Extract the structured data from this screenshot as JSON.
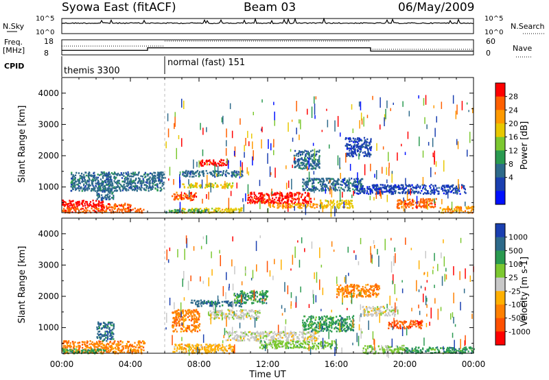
{
  "header": {
    "station": "Syowa East (fitACF)",
    "beam": "Beam 03",
    "date": "06/May/2009"
  },
  "panel_labels": {
    "nsky": "N.Sky",
    "nsearch": "N.Search",
    "freq_line1": "Freq.",
    "freq_line2": "[MHz]",
    "nave": "Nave",
    "cpid": "CPID"
  },
  "chart_data": [
    {
      "type": "line",
      "name": "noise-panel",
      "left_axis": {
        "ticks": [
          "10^5",
          "10^0"
        ]
      },
      "right_axis": {
        "ticks": [
          "10^5",
          "10^0"
        ]
      }
    },
    {
      "type": "line",
      "name": "frequency-panel",
      "left_axis": {
        "range": [
          8,
          18
        ],
        "ticks": [
          "18",
          "8"
        ]
      },
      "right_axis": {
        "range": [
          0,
          60
        ],
        "ticks": [
          "60",
          "0"
        ]
      },
      "frequency_steps": [
        {
          "from_hour": 0.0,
          "to_hour": 5.0,
          "value": 11.0
        },
        {
          "from_hour": 5.0,
          "to_hour": 18.0,
          "value": 12.7
        },
        {
          "from_hour": 18.0,
          "to_hour": 24.0,
          "value": 10.5
        }
      ],
      "nave_level": [
        {
          "from_hour": 0.0,
          "to_hour": 6.0,
          "value": 35
        },
        {
          "from_hour": 6.0,
          "to_hour": 18.0,
          "value": 55
        },
        {
          "from_hour": 18.0,
          "to_hour": 24.0,
          "value": 22
        }
      ]
    },
    {
      "type": "table",
      "name": "cpid-panel",
      "modes": [
        {
          "label": "themis 3300",
          "start_hour": 0.0
        },
        {
          "label": "normal (fast) 151",
          "start_hour": 6.0
        }
      ]
    },
    {
      "type": "heatmap",
      "name": "power-panel",
      "x_range_hours": [
        0,
        24
      ],
      "y_range_km": [
        180,
        4500
      ],
      "ylabel": "Slant Range [km]",
      "yticks": [
        1000,
        2000,
        3000,
        4000
      ],
      "colorbar": {
        "label": "Power [dB]",
        "ticks": [
          "28",
          "24",
          "20",
          "16",
          "12",
          "8",
          "4"
        ],
        "colors": [
          "#ff0000",
          "#ff6000",
          "#ff9a00",
          "#e8c800",
          "#7cc830",
          "#2a9a50",
          "#2d6a8a",
          "#1a3fb0",
          "#0010ff"
        ]
      },
      "blobs": [
        {
          "x0": 0.0,
          "x1": 2.5,
          "y0": 350,
          "y1": 600,
          "c": 0
        },
        {
          "x0": 0.0,
          "x1": 4.8,
          "y0": 200,
          "y1": 350,
          "c": 1
        },
        {
          "x0": 2.5,
          "x1": 4.0,
          "y0": 350,
          "y1": 500,
          "c": 1
        },
        {
          "x0": 2.0,
          "x1": 3.0,
          "y0": 600,
          "y1": 1200,
          "c": 6
        },
        {
          "x0": 6.4,
          "x1": 7.8,
          "y0": 600,
          "y1": 850,
          "c": 1
        },
        {
          "x0": 6.5,
          "x1": 10.5,
          "y0": 200,
          "y1": 350,
          "c": 3
        },
        {
          "x0": 7.0,
          "x1": 10.0,
          "y0": 1000,
          "y1": 1150,
          "c": 3
        },
        {
          "x0": 8.0,
          "x1": 9.7,
          "y0": 1700,
          "y1": 1900,
          "c": 0
        },
        {
          "x0": 7.0,
          "x1": 10.5,
          "y0": 1350,
          "y1": 1550,
          "c": 6
        },
        {
          "x0": 10.8,
          "x1": 14.5,
          "y0": 500,
          "y1": 850,
          "c": 0
        },
        {
          "x0": 12.0,
          "x1": 15.0,
          "y0": 350,
          "y1": 500,
          "c": 2
        },
        {
          "x0": 15.0,
          "x1": 17.0,
          "y0": 350,
          "y1": 600,
          "c": 3
        },
        {
          "x0": 19.5,
          "x1": 21.8,
          "y0": 350,
          "y1": 650,
          "c": 1
        },
        {
          "x0": 14.0,
          "x1": 17.5,
          "y0": 900,
          "y1": 1300,
          "c": 6
        },
        {
          "x0": 17.0,
          "x1": 23.5,
          "y0": 800,
          "y1": 1100,
          "c": 7
        },
        {
          "x0": 13.5,
          "x1": 15.0,
          "y0": 1600,
          "y1": 2200,
          "c": 6
        },
        {
          "x0": 16.5,
          "x1": 18.0,
          "y0": 2000,
          "y1": 2600,
          "c": 7
        },
        {
          "x0": 0.5,
          "x1": 6.0,
          "y0": 900,
          "y1": 1500,
          "c": 6
        },
        {
          "x0": 6.0,
          "x1": 8.5,
          "y0": 200,
          "y1": 300,
          "c": 5
        },
        {
          "x0": 22.0,
          "x1": 24.0,
          "y0": 200,
          "y1": 400,
          "c": 2
        }
      ]
    },
    {
      "type": "heatmap",
      "name": "velocity-panel",
      "x_range_hours": [
        0,
        24
      ],
      "y_range_km": [
        180,
        4500
      ],
      "ylabel": "Slant Range [km]",
      "yticks": [
        1000,
        2000,
        3000,
        4000
      ],
      "xlabel": "Time UT",
      "xticks": [
        "00:00",
        "04:00",
        "08:00",
        "12:00",
        "16:00",
        "20:00",
        "00:00"
      ],
      "colorbar": {
        "label": "Velocity [m s-1]",
        "ticks": [
          "1000",
          "500",
          "100",
          "25",
          "-25",
          "-100",
          "-500",
          "-1000"
        ],
        "colors": [
          "#1a3fb0",
          "#2d6a8a",
          "#2a9a50",
          "#7cc830",
          "#c8c8c8",
          "#ffb000",
          "#ff8000",
          "#ff5000",
          "#ff0000"
        ]
      },
      "blobs": [
        {
          "x0": 0.0,
          "x1": 4.8,
          "y0": 200,
          "y1": 600,
          "c": 6
        },
        {
          "x0": 0.0,
          "x1": 2.5,
          "y0": 200,
          "y1": 350,
          "c": 2
        },
        {
          "x0": 2.0,
          "x1": 3.0,
          "y0": 600,
          "y1": 1200,
          "c": 1
        },
        {
          "x0": 6.4,
          "x1": 8.0,
          "y0": 900,
          "y1": 1600,
          "c": 6
        },
        {
          "x0": 6.4,
          "x1": 10.0,
          "y0": 200,
          "y1": 500,
          "c": 5
        },
        {
          "x0": 7.5,
          "x1": 10.5,
          "y0": 1700,
          "y1": 1900,
          "c": 1
        },
        {
          "x0": 8.5,
          "x1": 11.5,
          "y0": 1300,
          "y1": 1600,
          "c": 4
        },
        {
          "x0": 9.5,
          "x1": 15.0,
          "y0": 600,
          "y1": 900,
          "c": 4
        },
        {
          "x0": 11.5,
          "x1": 16.0,
          "y0": 350,
          "y1": 600,
          "c": 3
        },
        {
          "x0": 14.0,
          "x1": 17.0,
          "y0": 900,
          "y1": 1400,
          "c": 2
        },
        {
          "x0": 17.5,
          "x1": 19.5,
          "y0": 1400,
          "y1": 1700,
          "c": 4
        },
        {
          "x0": 19.0,
          "x1": 21.0,
          "y0": 1000,
          "y1": 1250,
          "c": 7
        },
        {
          "x0": 20.0,
          "x1": 24.0,
          "y0": 200,
          "y1": 400,
          "c": 2
        },
        {
          "x0": 17.5,
          "x1": 20.0,
          "y0": 200,
          "y1": 450,
          "c": 3
        },
        {
          "x0": 16.0,
          "x1": 18.5,
          "y0": 2000,
          "y1": 2400,
          "c": 6
        },
        {
          "x0": 10.0,
          "x1": 12.0,
          "y0": 1800,
          "y1": 2200,
          "c": 2
        }
      ]
    }
  ]
}
